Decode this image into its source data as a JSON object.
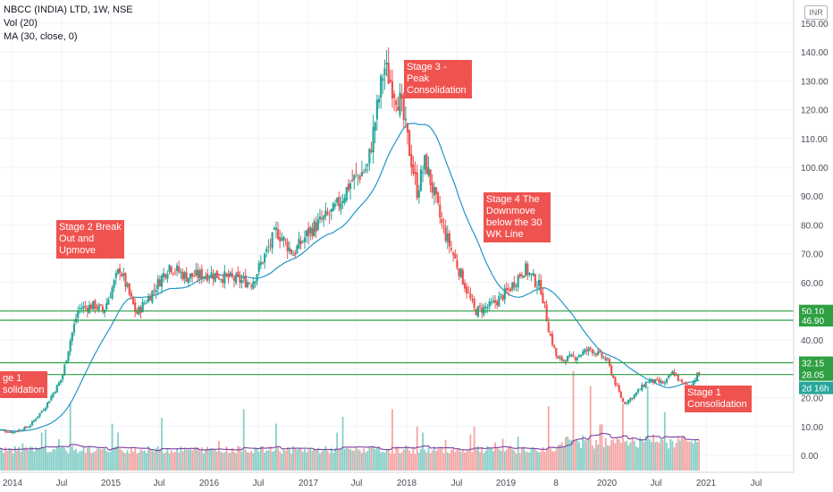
{
  "header": {
    "title": "NBCC (INDIA) LTD, 1W, NSE",
    "indicators": [
      "Vol (20)",
      "MA (30, close, 0)"
    ],
    "currency": "INR"
  },
  "colors": {
    "up": "#26a69a",
    "down": "#ef5350",
    "ma": "#2196c8",
    "vol_ma": "#7b3f9e",
    "level_line": "#2ea043",
    "badge": "#2ea043",
    "countdown_badge": "#26a69a",
    "note": "#ef5350",
    "grid": "#f0f3fa"
  },
  "annotations": [
    {
      "id": "stage1-left",
      "text": "ge 1\nsolidation"
    },
    {
      "id": "stage2",
      "text": "Stage 2 Break\nOut and\nUpmove"
    },
    {
      "id": "stage3",
      "text": "Stage 3 - Peak\nConsolidation"
    },
    {
      "id": "stage4",
      "text": "Stage 4 The\nDownmove\nbelow the 30\nWK Line"
    },
    {
      "id": "stage1-right",
      "text": "Stage 1\nConsolidation"
    }
  ],
  "chart_data": {
    "type": "candlestick",
    "title": "NBCC (INDIA) LTD, 1W, NSE",
    "y_axis": {
      "ticks": [
        "150.00",
        "140.00",
        "130.00",
        "120.00",
        "110.00",
        "100.00",
        "90.00",
        "80.00",
        "70.00",
        "60.00",
        "50.00",
        "40.00",
        "30.00",
        "20.00",
        "10.00",
        "0.00"
      ],
      "range": [
        -3,
        152
      ]
    },
    "x_axis": {
      "ticks": [
        "2014",
        "Jul",
        "2015",
        "Jul",
        "2016",
        "Jul",
        "2017",
        "Jul",
        "2018",
        "Jul",
        "2019",
        "8",
        "2020",
        "Jul",
        "2021",
        "Jul"
      ],
      "range": [
        "2013-11",
        "2021-09"
      ]
    },
    "horizontal_levels": [
      {
        "label": "50.10",
        "value": 50.1
      },
      {
        "label": "46.90",
        "value": 46.9
      },
      {
        "label": "32.15",
        "value": 32.15
      },
      {
        "label": "28.05",
        "value": 28.05
      }
    ],
    "countdown_label": "2d 16h",
    "price_path_monthly": [
      {
        "date": "2013-11",
        "close": 9
      },
      {
        "date": "2014-01",
        "close": 8
      },
      {
        "date": "2014-03",
        "close": 10
      },
      {
        "date": "2014-05",
        "close": 17
      },
      {
        "date": "2014-07",
        "close": 27
      },
      {
        "date": "2014-08",
        "close": 40
      },
      {
        "date": "2014-09",
        "close": 51
      },
      {
        "date": "2014-11",
        "close": 52
      },
      {
        "date": "2014-12",
        "close": 50
      },
      {
        "date": "2015-02",
        "close": 65
      },
      {
        "date": "2015-04",
        "close": 49
      },
      {
        "date": "2015-06",
        "close": 57
      },
      {
        "date": "2015-08",
        "close": 66
      },
      {
        "date": "2015-10",
        "close": 62
      },
      {
        "date": "2016-01",
        "close": 63
      },
      {
        "date": "2016-04",
        "close": 61
      },
      {
        "date": "2016-06",
        "close": 60
      },
      {
        "date": "2016-09",
        "close": 78
      },
      {
        "date": "2016-11",
        "close": 70
      },
      {
        "date": "2017-01",
        "close": 78
      },
      {
        "date": "2017-04",
        "close": 85
      },
      {
        "date": "2017-06",
        "close": 95
      },
      {
        "date": "2017-08",
        "close": 100
      },
      {
        "date": "2017-10",
        "close": 135
      },
      {
        "date": "2017-12",
        "close": 122
      },
      {
        "date": "2018-02",
        "close": 92
      },
      {
        "date": "2018-03",
        "close": 102
      },
      {
        "date": "2018-05",
        "close": 80
      },
      {
        "date": "2018-07",
        "close": 65
      },
      {
        "date": "2018-09",
        "close": 50
      },
      {
        "date": "2018-11",
        "close": 52
      },
      {
        "date": "2019-01",
        "close": 57
      },
      {
        "date": "2019-03",
        "close": 65
      },
      {
        "date": "2019-05",
        "close": 58
      },
      {
        "date": "2019-06",
        "close": 43
      },
      {
        "date": "2019-07",
        "close": 33
      },
      {
        "date": "2019-09",
        "close": 34
      },
      {
        "date": "2019-11",
        "close": 37
      },
      {
        "date": "2020-01",
        "close": 33
      },
      {
        "date": "2020-02",
        "close": 25
      },
      {
        "date": "2020-03",
        "close": 18
      },
      {
        "date": "2020-04",
        "close": 20
      },
      {
        "date": "2020-06",
        "close": 26
      },
      {
        "date": "2020-08",
        "close": 25
      },
      {
        "date": "2020-09",
        "close": 29
      },
      {
        "date": "2020-10",
        "close": 25
      },
      {
        "date": "2020-11",
        "close": 24
      },
      {
        "date": "2020-12",
        "close": 28
      }
    ],
    "volume_spikes": [
      {
        "date": "2014-05",
        "volume": 9
      },
      {
        "date": "2014-08",
        "volume": 18
      },
      {
        "date": "2015-01",
        "volume": 11
      },
      {
        "date": "2015-07",
        "volume": 13
      },
      {
        "date": "2016-05",
        "volume": 16
      },
      {
        "date": "2016-09",
        "volume": 11
      },
      {
        "date": "2017-05",
        "volume": 12
      },
      {
        "date": "2017-11",
        "volume": 16
      },
      {
        "date": "2018-02",
        "volume": 10
      },
      {
        "date": "2018-09",
        "volume": 10
      },
      {
        "date": "2019-06",
        "volume": 17
      },
      {
        "date": "2019-09",
        "volume": 26
      },
      {
        "date": "2019-11",
        "volume": 24
      },
      {
        "date": "2020-03",
        "volume": 18
      },
      {
        "date": "2020-06",
        "volume": 24
      },
      {
        "date": "2020-08",
        "volume": 15
      }
    ]
  }
}
